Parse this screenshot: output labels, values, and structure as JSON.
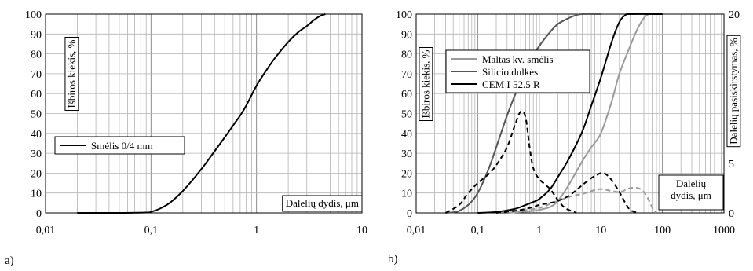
{
  "panels": {
    "a": "a)",
    "b": "b)"
  },
  "colors": {
    "black": "#000000",
    "dark_gray": "#555555",
    "light_gray": "#9a9a9a",
    "grid": "#b3b3b3",
    "grid_major": "#8c8c8c"
  },
  "chart_data": [
    {
      "type": "line",
      "title": "",
      "xlabel": "Dalelių dydis, μm",
      "ylabel": "Išbiros kiekis, %",
      "xscale": "log",
      "xlim": [
        0.01,
        10
      ],
      "ylim": [
        0,
        100
      ],
      "x_ticks": [
        "0,01",
        "0,1",
        "1",
        "10"
      ],
      "y_ticks": [
        "0",
        "10",
        "20",
        "30",
        "40",
        "50",
        "60",
        "70",
        "80",
        "90",
        "100"
      ],
      "grid": true,
      "legend_position": "middle-left",
      "series": [
        {
          "name": "Smėlis 0/4 mm",
          "color": "#000000",
          "dash": "solid",
          "x": [
            0.02,
            0.05,
            0.09,
            0.1,
            0.12,
            0.15,
            0.2,
            0.3,
            0.4,
            0.5,
            0.6,
            0.7,
            0.8,
            1.0,
            1.25,
            1.5,
            2.0,
            2.5,
            3.0,
            3.5,
            4.0,
            4.5
          ],
          "y": [
            0,
            0,
            0.2,
            0.5,
            2,
            5,
            11,
            22,
            31,
            38,
            44,
            49,
            54,
            64,
            72,
            78,
            86,
            91,
            94,
            97,
            99,
            100
          ]
        }
      ]
    },
    {
      "type": "line",
      "title": "",
      "xlabel": "Dalelių dydis, μm",
      "ylabel": "Išbiros kiekis, %",
      "y2label": "Dalelių pasiskirstymas, %",
      "xscale": "log",
      "xlim": [
        0.01,
        1000
      ],
      "ylim": [
        0,
        100
      ],
      "y2lim": [
        0,
        20
      ],
      "x_ticks": [
        "0,01",
        "0,1",
        "1",
        "10",
        "100",
        "1000"
      ],
      "y_ticks": [
        "0",
        "10",
        "20",
        "30",
        "40",
        "50",
        "60",
        "70",
        "80",
        "90",
        "100"
      ],
      "y2_ticks": [
        "0",
        "5",
        "10",
        "15",
        "20"
      ],
      "grid": true,
      "legend_position": "top-left",
      "series": [
        {
          "name": "Maltas kv. smėlis",
          "axis": "left",
          "color": "#9a9a9a",
          "dash": "solid",
          "legend": true,
          "x": [
            0.3,
            0.5,
            0.8,
            1.0,
            1.5,
            2.0,
            3.0,
            5.0,
            7.0,
            10,
            15,
            20,
            30,
            40,
            50,
            60,
            70
          ],
          "y": [
            0,
            0.5,
            1,
            1.5,
            3,
            6,
            14,
            26,
            33,
            40,
            56,
            70,
            84,
            93,
            98,
            100,
            100
          ]
        },
        {
          "name": "Silicio dulkės",
          "axis": "left",
          "color": "#555555",
          "dash": "solid",
          "legend": true,
          "x": [
            0.03,
            0.04,
            0.05,
            0.07,
            0.1,
            0.15,
            0.2,
            0.3,
            0.4,
            0.5,
            0.7,
            1.0,
            1.5,
            2.0,
            3.0,
            4.0,
            5.0,
            10
          ],
          "y": [
            0,
            0.3,
            1,
            4,
            10,
            22,
            33,
            49,
            59,
            66,
            76,
            84,
            91,
            95,
            98,
            99.5,
            100,
            100
          ]
        },
        {
          "name": "CEM I 52.5 R",
          "axis": "left",
          "color": "#000000",
          "dash": "solid",
          "legend": true,
          "x": [
            0.1,
            0.2,
            0.4,
            0.6,
            0.8,
            1.0,
            1.5,
            2.0,
            3.0,
            5.0,
            7.0,
            10,
            15,
            20,
            25,
            30,
            100
          ],
          "y": [
            0,
            0.5,
            2,
            4,
            5.5,
            7,
            12,
            18,
            27,
            41,
            54,
            68,
            86,
            96,
            99.5,
            100,
            100
          ]
        },
        {
          "name": "Maltas kv. smėlis",
          "axis": "right",
          "color": "#9a9a9a",
          "dash": "dashed",
          "legend": false,
          "x": [
            0.3,
            0.5,
            1.0,
            1.5,
            2.0,
            3.0,
            4.0,
            5.0,
            7.0,
            10,
            15,
            20,
            25,
            30,
            40,
            50,
            60,
            70,
            80
          ],
          "y": [
            0,
            0.2,
            0.5,
            0.9,
            1.2,
            1.6,
            1.8,
            1.9,
            2.2,
            2.4,
            2.2,
            2.1,
            2.3,
            2.5,
            2.5,
            2.1,
            1.3,
            0.4,
            0
          ]
        },
        {
          "name": "Silicio dulkės",
          "axis": "right",
          "color": "#000000",
          "dash": "dashed",
          "legend": false,
          "x": [
            0.03,
            0.05,
            0.07,
            0.1,
            0.15,
            0.2,
            0.3,
            0.4,
            0.5,
            0.6,
            0.7,
            0.8,
            1.0,
            1.5,
            2.0,
            2.5,
            3.0,
            4.0
          ],
          "y": [
            0,
            0.8,
            2,
            3,
            3.9,
            4.8,
            6.6,
            8.8,
            10.2,
            9.6,
            6.5,
            4.5,
            3.4,
            2.4,
            1.3,
            0.6,
            0.3,
            0
          ]
        },
        {
          "name": "CEM I 52.5 R",
          "axis": "right",
          "color": "#000000",
          "dash": "dashed",
          "legend": false,
          "x": [
            0.2,
            0.5,
            0.8,
            1.0,
            1.5,
            2.0,
            3.0,
            4.0,
            5.0,
            7.0,
            10,
            12,
            15,
            20,
            25,
            30,
            40
          ],
          "y": [
            0,
            0.3,
            0.6,
            0.8,
            1.0,
            1.2,
            1.7,
            2.3,
            2.8,
            3.5,
            4.0,
            3.9,
            3.3,
            2.1,
            1.0,
            0.3,
            0
          ]
        }
      ]
    }
  ]
}
